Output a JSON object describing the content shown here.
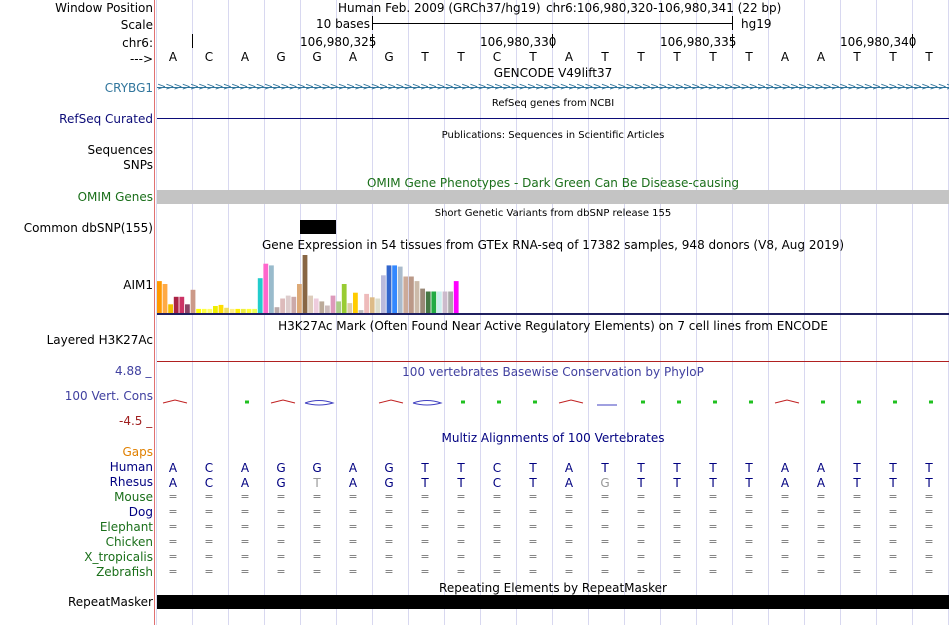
{
  "header": {
    "window_position_label": "Window Position",
    "assembly_title": "Human Feb. 2009 (GRCh37/hg19)",
    "position_text": "chr6:106,980,320-106,980,341 (22 bp)",
    "scale_label": "Scale",
    "scale_bar_text": "10 bases",
    "scale_db": "hg19",
    "chrom_label": "chr6:",
    "coord_ticks": [
      "106,980,325",
      "106,980,330",
      "106,980,335",
      "106,980,340"
    ],
    "strand_label": "--->",
    "bases": [
      "A",
      "C",
      "A",
      "G",
      "G",
      "A",
      "G",
      "T",
      "T",
      "C",
      "T",
      "A",
      "T",
      "T",
      "T",
      "T",
      "T",
      "A",
      "A",
      "T",
      "T",
      "T"
    ]
  },
  "tracks": {
    "gencode": {
      "title": "GENCODE V49lift37",
      "gene_label": "CRYBG1",
      "color": "#30759c"
    },
    "refseq": {
      "label": "RefSeq Curated",
      "title": "RefSeq genes from NCBI",
      "color": "#0c0c78"
    },
    "publications": {
      "title": "Publications: Sequences in Scientific Articles",
      "label_line1": "Sequences",
      "label_line2": "SNPs"
    },
    "omim": {
      "label": "OMIM Genes",
      "title": "OMIM Gene Phenotypes - Dark Green Can Be Disease-causing",
      "color": "#1a6f1a"
    },
    "dbsnp": {
      "label": "Common dbSNP(155)",
      "title": "Short Genetic Variants from dbSNP release 155"
    },
    "gtex": {
      "label": "AIM1",
      "title": "Gene Expression in 54 tissues from GTEx RNA-seq of 17382 samples, 948 donors (V8, Aug 2019)",
      "values": [
        0.55,
        0.5,
        0.15,
        0.28,
        0.28,
        0.15,
        0.4,
        0.07,
        0.07,
        0.07,
        0.12,
        0.14,
        0.09,
        0.07,
        0.07,
        0.07,
        0.07,
        0.07,
        0.6,
        0.85,
        0.82,
        0.1,
        0.25,
        0.3,
        0.28,
        0.5,
        1.0,
        0.3,
        0.25,
        0.2,
        0.13,
        0.3,
        0.2,
        0.5,
        0.17,
        0.35,
        0.05,
        0.33,
        0.27,
        0.25,
        0.65,
        0.82,
        0.82,
        0.8,
        0.63,
        0.63,
        0.55,
        0.42,
        0.37,
        0.37,
        0.37,
        0.37,
        0.37,
        0.55
      ],
      "colors": [
        "#ff9900",
        "#ffaa44",
        "#f0c000",
        "#aa2244",
        "#cc3366",
        "#884466",
        "#cc9988",
        "#ffff00",
        "#ffff44",
        "#ffff66",
        "#eeee00",
        "#ffdd00",
        "#eedd66",
        "#ffee88",
        "#ffee00",
        "#eeee44",
        "#ffff33",
        "#eeff55",
        "#22cccc",
        "#ff66cc",
        "#99bbcc",
        "#bbaaaa",
        "#ddbbbb",
        "#ddcccc",
        "#ccaaaa",
        "#ddaa77",
        "#886644",
        "#ddccbb",
        "#eeccdd",
        "#bbaa99",
        "#ccbbbb",
        "#dd99bb",
        "#aacc88",
        "#99cc33",
        "#ddccaa",
        "#ffcc00",
        "#bbbbbb",
        "#eebbbb",
        "#ddbb88",
        "#ddddcc",
        "#bbbbdd",
        "#3366cc",
        "#3388ff",
        "#aabbcc",
        "#ccaa99",
        "#bb9988",
        "#ccbbaa",
        "#998877",
        "#447744",
        "#22aa44",
        "#cceeee",
        "#ccbbcc",
        "#aaaaaa",
        "#ff00ff"
      ]
    },
    "h3k27ac": {
      "label": "Layered H3K27Ac",
      "title": "H3K27Ac Mark (Often Found Near Active Regulatory Elements) on 7 cell lines from ENCODE"
    },
    "phylop": {
      "label": "100 Vert. Cons",
      "title": "100 vertebrates Basewise Conservation by PhyloP",
      "max_label": "4.88 _",
      "min_label": "-4.5 _",
      "color": "#4040a0"
    },
    "multiz": {
      "title": "Multiz Alignments of 100 Vertebrates",
      "gaps_label": "Gaps",
      "species": [
        {
          "name": "Human",
          "color": "#000080",
          "seq": [
            "A",
            "C",
            "A",
            "G",
            "G",
            "A",
            "G",
            "T",
            "T",
            "C",
            "T",
            "A",
            "T",
            "T",
            "T",
            "T",
            "T",
            "A",
            "A",
            "T",
            "T",
            "T"
          ]
        },
        {
          "name": "Rhesus",
          "color": "#000080",
          "seq": [
            "A",
            "C",
            "A",
            "G",
            "T",
            "A",
            "G",
            "T",
            "T",
            "C",
            "T",
            "A",
            "G",
            "T",
            "T",
            "T",
            "T",
            "A",
            "A",
            "T",
            "T",
            "T"
          ]
        },
        {
          "name": "Mouse",
          "color": "#1a6f1a",
          "eq": "="
        },
        {
          "name": "Dog",
          "color": "#000080",
          "eq": "="
        },
        {
          "name": "Elephant",
          "color": "#1a6f1a",
          "eq": "="
        },
        {
          "name": "Chicken",
          "color": "#1a6f1a",
          "eq": "="
        },
        {
          "name": "X_tropicalis",
          "color": "#1a6f1a",
          "eq": "="
        },
        {
          "name": "Zebrafish",
          "color": "#1a6f1a",
          "eq": "="
        }
      ]
    },
    "repeatmasker": {
      "label": "RepeatMasker",
      "title": "Repeating Elements by RepeatMasker"
    }
  }
}
